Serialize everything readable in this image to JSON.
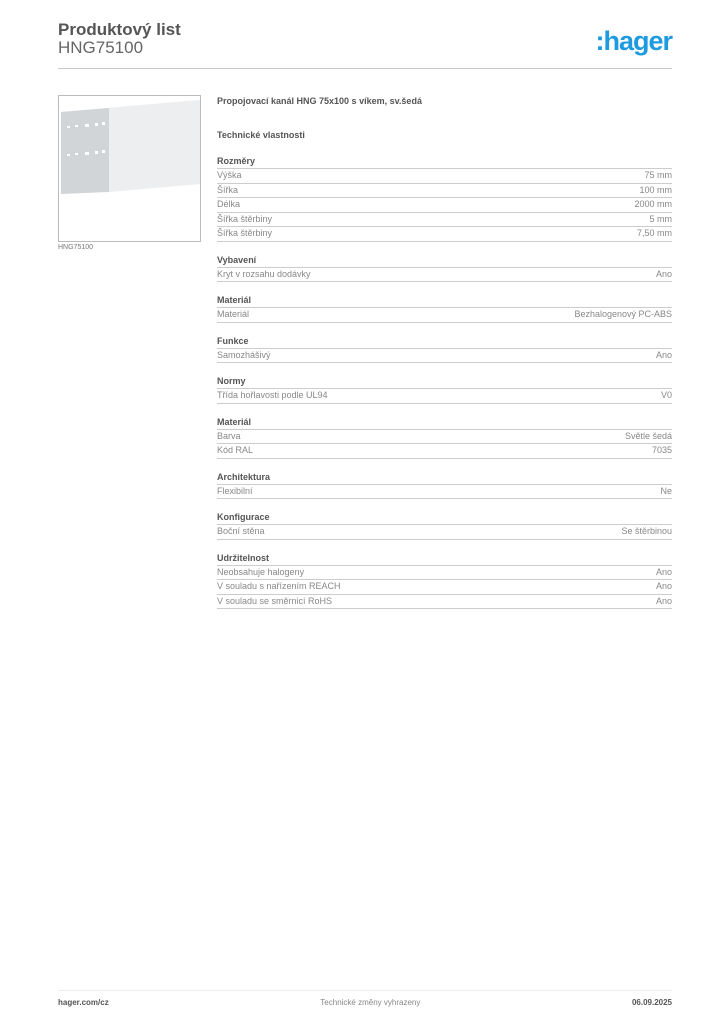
{
  "header": {
    "title": "Produktový list",
    "code": "HNG75100",
    "logo": ":hager",
    "brand_color": "#1e9be0"
  },
  "image": {
    "caption": "HNG75100"
  },
  "product_name": "Propojovací kanál HNG 75x100 s víkem, sv.šedá",
  "tech_heading": "Technické vlastnosti",
  "sections": [
    {
      "title": "Rozměry",
      "rows": [
        [
          "Výška",
          "75 mm"
        ],
        [
          "Šířka",
          "100 mm"
        ],
        [
          "Délka",
          "2000 mm"
        ],
        [
          "Šířka štěrbiny",
          "5 mm"
        ],
        [
          "Šířka štěrbiny",
          "7,50 mm"
        ]
      ]
    },
    {
      "title": "Vybavení",
      "rows": [
        [
          "Kryt v rozsahu dodávky",
          "Ano"
        ]
      ]
    },
    {
      "title": "Materiál",
      "rows": [
        [
          "Materiál",
          "Bezhalogenový PC-ABS"
        ]
      ]
    },
    {
      "title": "Funkce",
      "rows": [
        [
          "Samozhášivý",
          "Ano"
        ]
      ]
    },
    {
      "title": "Normy",
      "rows": [
        [
          "Třída hořlavosti podle UL94",
          "V0"
        ]
      ]
    },
    {
      "title": "Materiál",
      "rows": [
        [
          "Barva",
          "Světle šedá"
        ],
        [
          "Kód RAL",
          "7035"
        ]
      ]
    },
    {
      "title": "Architektura",
      "rows": [
        [
          "Flexibilní",
          "Ne"
        ]
      ]
    },
    {
      "title": "Konfigurace",
      "rows": [
        [
          "Boční stěna",
          "Se štěrbinou"
        ]
      ]
    },
    {
      "title": "Udržitelnost",
      "rows": [
        [
          "Neobsahuje halogeny",
          "Ano"
        ],
        [
          "V souladu s nařízením REACH",
          "Ano"
        ],
        [
          "V souladu se směrnicí RoHS",
          "Ano"
        ]
      ]
    }
  ],
  "footer": {
    "website": "hager.com/cz",
    "note": "Technické změny vyhrazeny",
    "date": "06.09.2025"
  }
}
